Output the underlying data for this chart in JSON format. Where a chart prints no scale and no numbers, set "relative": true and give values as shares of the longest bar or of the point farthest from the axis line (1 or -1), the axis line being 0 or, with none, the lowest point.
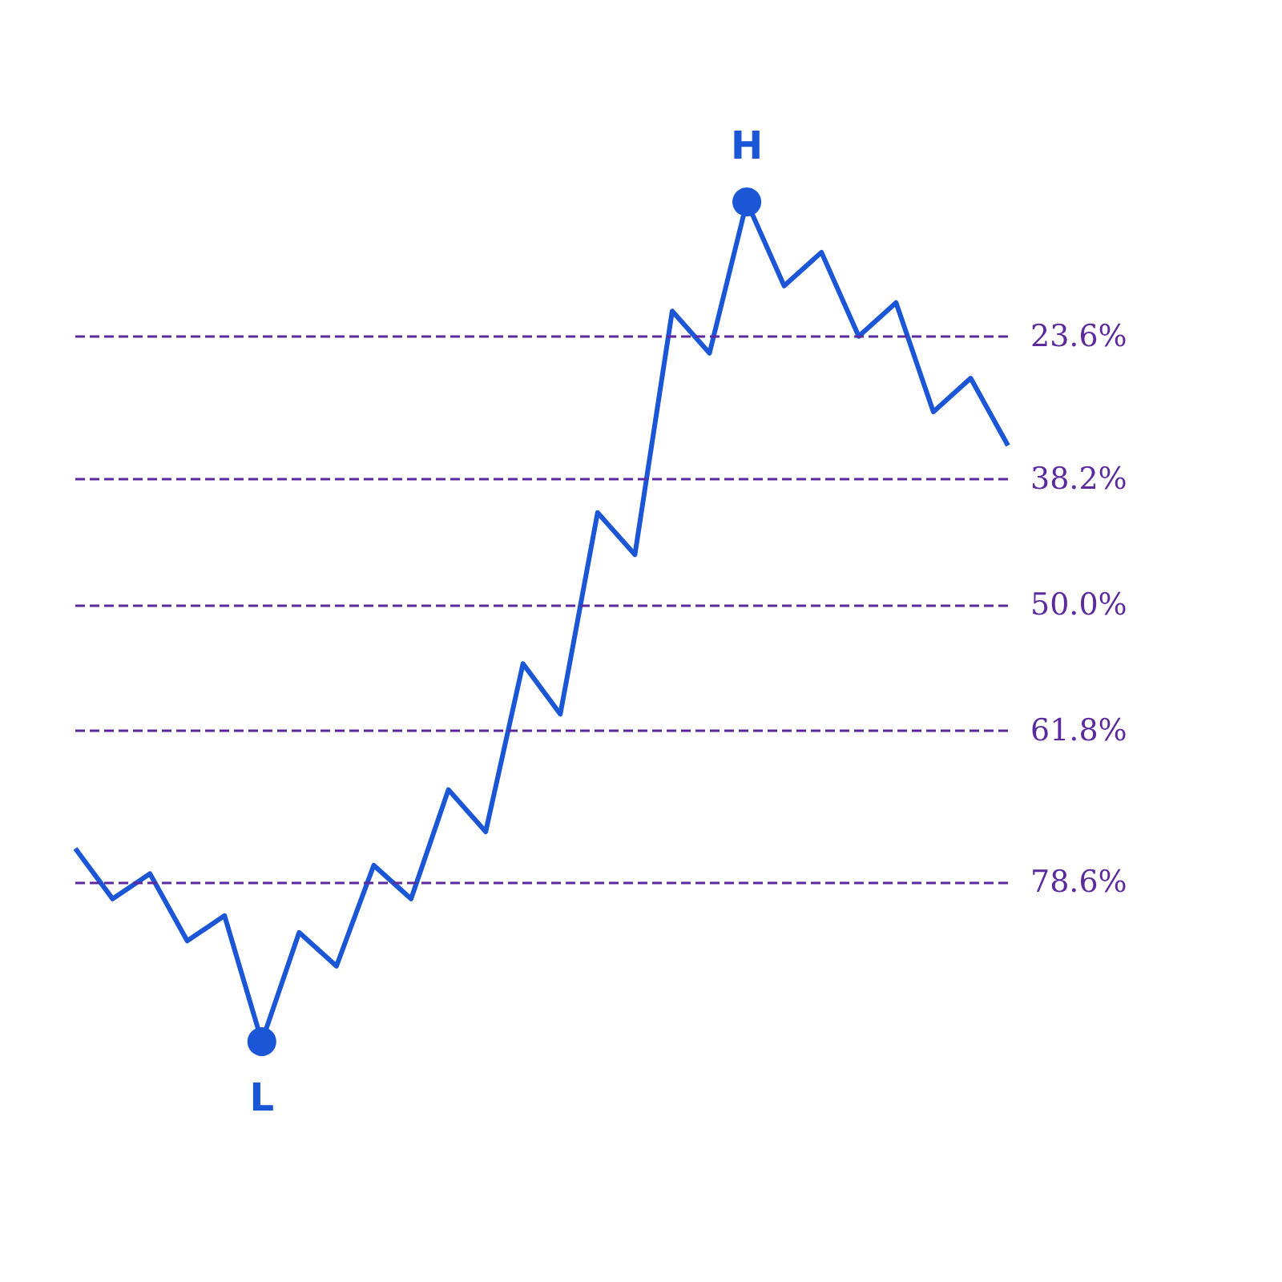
{
  "chart_data": {
    "type": "line",
    "relative": true,
    "categories": [
      null,
      null,
      null,
      null,
      null,
      null,
      null,
      null,
      null,
      null,
      null,
      null,
      null,
      null,
      null,
      null,
      null,
      null,
      null,
      null,
      null,
      null,
      null,
      null,
      null,
      null
    ],
    "series": [
      {
        "color": "#1a56d6",
        "values": [
          0.23,
          0.17,
          0.2,
          0.12,
          0.15,
          0,
          0.13,
          0.09,
          0.21,
          0.17,
          0.3,
          0.25,
          0.45,
          0.39,
          0.63,
          0.58,
          0.87,
          0.82,
          1,
          0.9,
          0.94,
          0.84,
          0.88,
          0.75,
          0.79,
          0.71
        ]
      }
    ],
    "ref_lines": [
      {
        "axis": "y",
        "value": 0.84,
        "color": "#5b2a9e",
        "line_style": "dashed"
      },
      {
        "axis": "y",
        "value": 0.67,
        "color": "#5b2a9e",
        "line_style": "dashed"
      },
      {
        "axis": "y",
        "value": 0.52,
        "color": "#5b2a9e",
        "line_style": "dashed"
      },
      {
        "axis": "y",
        "value": 0.37,
        "color": "#5b2a9e",
        "line_style": "dashed"
      },
      {
        "axis": "y",
        "value": 0.19,
        "color": "#5b2a9e",
        "line_style": "dashed"
      }
    ],
    "annotations": [
      {
        "text": "H",
        "y": 1
      },
      {
        "text": "L",
        "y": 0
      },
      "23.6%",
      "38.2%",
      "50.0%",
      "61.8%",
      "78.6%"
    ]
  }
}
